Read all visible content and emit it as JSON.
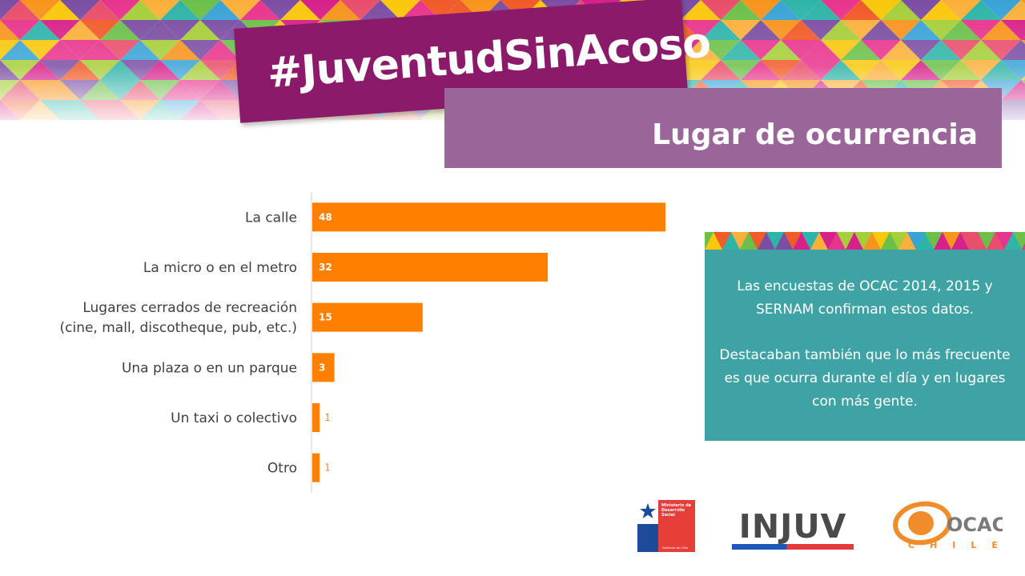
{
  "banner": {
    "hashtag": "#JuventudSinAcoso",
    "title": "Lugar de ocurrencia"
  },
  "chart_data": {
    "type": "bar",
    "orientation": "horizontal",
    "categories": [
      [
        "La calle"
      ],
      [
        "La micro o en el metro"
      ],
      [
        "Lugares cerrados de recreación",
        "(cine, mall, discotheque, pub, etc.)"
      ],
      [
        "Una plaza o en un parque"
      ],
      [
        "Un taxi o colectivo"
      ],
      [
        "Otro"
      ]
    ],
    "values": [
      48,
      32,
      15,
      3,
      1,
      1
    ],
    "bar_color": "#ff7f00",
    "label_inside_color": "#ffffff",
    "label_outside_color": "#e8893a",
    "title": "",
    "xlabel": "",
    "ylabel": "",
    "grid": false,
    "legend": "none"
  },
  "info": {
    "paragraph1": "Las encuestas de OCAC 2014, 2015 y SERNAM confirman estos datos.",
    "paragraph2": "Destacaban también que lo más frecuente es que ocurra durante el día y en lugares con más gente."
  },
  "logos": {
    "gobierno": {
      "line1": "Ministerio de",
      "line2": "Desarrollo",
      "line3": "Social",
      "footer": "Gobierno de Chile"
    },
    "injuv": "INJUV",
    "ocac_main": "OCAC",
    "ocac_sub": "CHILE"
  },
  "colors": {
    "hashtag_bg": "#8b1a6b",
    "title_bg": "#9a6598",
    "info_bg": "#3fa3a5"
  }
}
